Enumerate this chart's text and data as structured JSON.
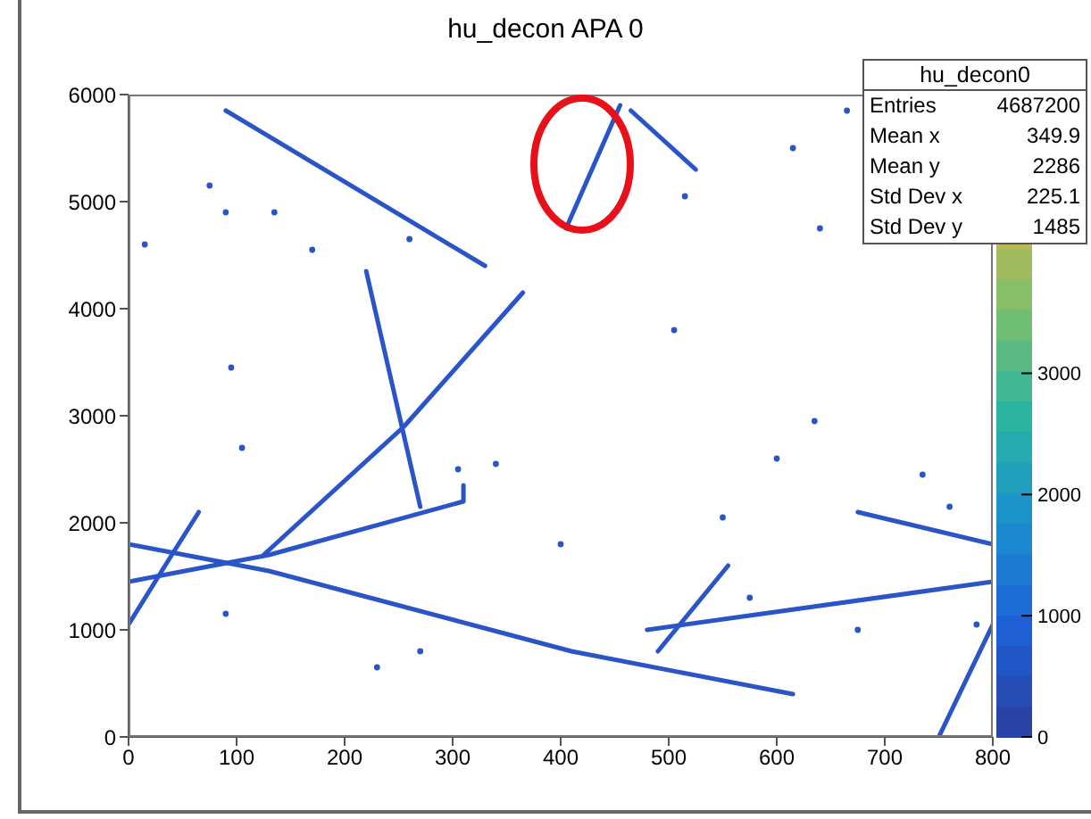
{
  "chart_data": {
    "type": "scatter",
    "title": "hu_decon APA 0",
    "xlim": [
      0,
      800
    ],
    "xticks": [
      0,
      100,
      200,
      300,
      400,
      500,
      600,
      700,
      800
    ],
    "ylim": [
      0,
      6000
    ],
    "yticks": [
      0,
      1000,
      2000,
      3000,
      4000,
      5000,
      6000
    ],
    "clim": [
      0,
      5300
    ],
    "cticks": [
      0,
      1000,
      2000,
      3000
    ],
    "annotations": [
      "hu_decon0",
      "Entries 4687200",
      "Mean x 349.9",
      "Mean y 2286",
      "Std Dev x 225.1",
      "Std Dev y 1485"
    ],
    "series": [
      {
        "type": "line",
        "marker": "none",
        "color": "#2a55c8",
        "x": [
          90,
          330
        ],
        "values": [
          5850,
          4400
        ]
      },
      {
        "type": "line",
        "marker": "none",
        "color": "#2a55c8",
        "x": [
          220,
          270
        ],
        "values": [
          4350,
          2150
        ]
      },
      {
        "type": "line",
        "marker": "none",
        "color": "#2a55c8",
        "x": [
          125,
          255,
          365
        ],
        "values": [
          1700,
          2900,
          4150
        ]
      },
      {
        "type": "line",
        "marker": "none",
        "color": "#2a55c8",
        "x": [
          0,
          130,
          310,
          310
        ],
        "values": [
          1450,
          1700,
          2200,
          2350
        ]
      },
      {
        "type": "line",
        "marker": "none",
        "color": "#2a55c8",
        "x": [
          0,
          130,
          410,
          615
        ],
        "values": [
          1800,
          1550,
          800,
          400
        ]
      },
      {
        "type": "line",
        "marker": "none",
        "color": "#2a55c8",
        "x": [
          0,
          40,
          65
        ],
        "values": [
          1050,
          1700,
          2100
        ]
      },
      {
        "type": "line",
        "marker": "none",
        "color": "#2a55c8",
        "x": [
          675,
          800
        ],
        "values": [
          2100,
          1800
        ]
      },
      {
        "type": "line",
        "marker": "none",
        "color": "#2a55c8",
        "x": [
          480,
          800
        ],
        "values": [
          1000,
          1450
        ]
      },
      {
        "type": "line",
        "marker": "none",
        "color": "#2a55c8",
        "x": [
          490,
          555
        ],
        "values": [
          800,
          1600
        ]
      },
      {
        "type": "line",
        "marker": "none",
        "color": "#2a55c8",
        "x": [
          750,
          800
        ],
        "values": [
          0,
          1050
        ]
      },
      {
        "type": "line",
        "marker": "none",
        "color": "#2a55c8",
        "x": [
          405,
          455
        ],
        "values": [
          4750,
          5900
        ]
      },
      {
        "type": "line",
        "marker": "none",
        "color": "#2a55c8",
        "x": [
          465,
          525
        ],
        "values": [
          5850,
          5300
        ]
      },
      {
        "marker": "circle",
        "color": "#2a55c8",
        "x": [
          15,
          135,
          90,
          105,
          95,
          90,
          230,
          270,
          340,
          305,
          550,
          400,
          675,
          785,
          575,
          635,
          735,
          760,
          600,
          615,
          505,
          665,
          640,
          515,
          75,
          170,
          260
        ],
        "values": [
          4600,
          4900,
          4900,
          2700,
          3450,
          1150,
          650,
          800,
          2550,
          2500,
          2050,
          1800,
          1000,
          1050,
          1300,
          2950,
          2450,
          2150,
          2600,
          5500,
          3800,
          5850,
          4750,
          5050,
          5150,
          4550,
          4650
        ]
      }
    ]
  }
}
